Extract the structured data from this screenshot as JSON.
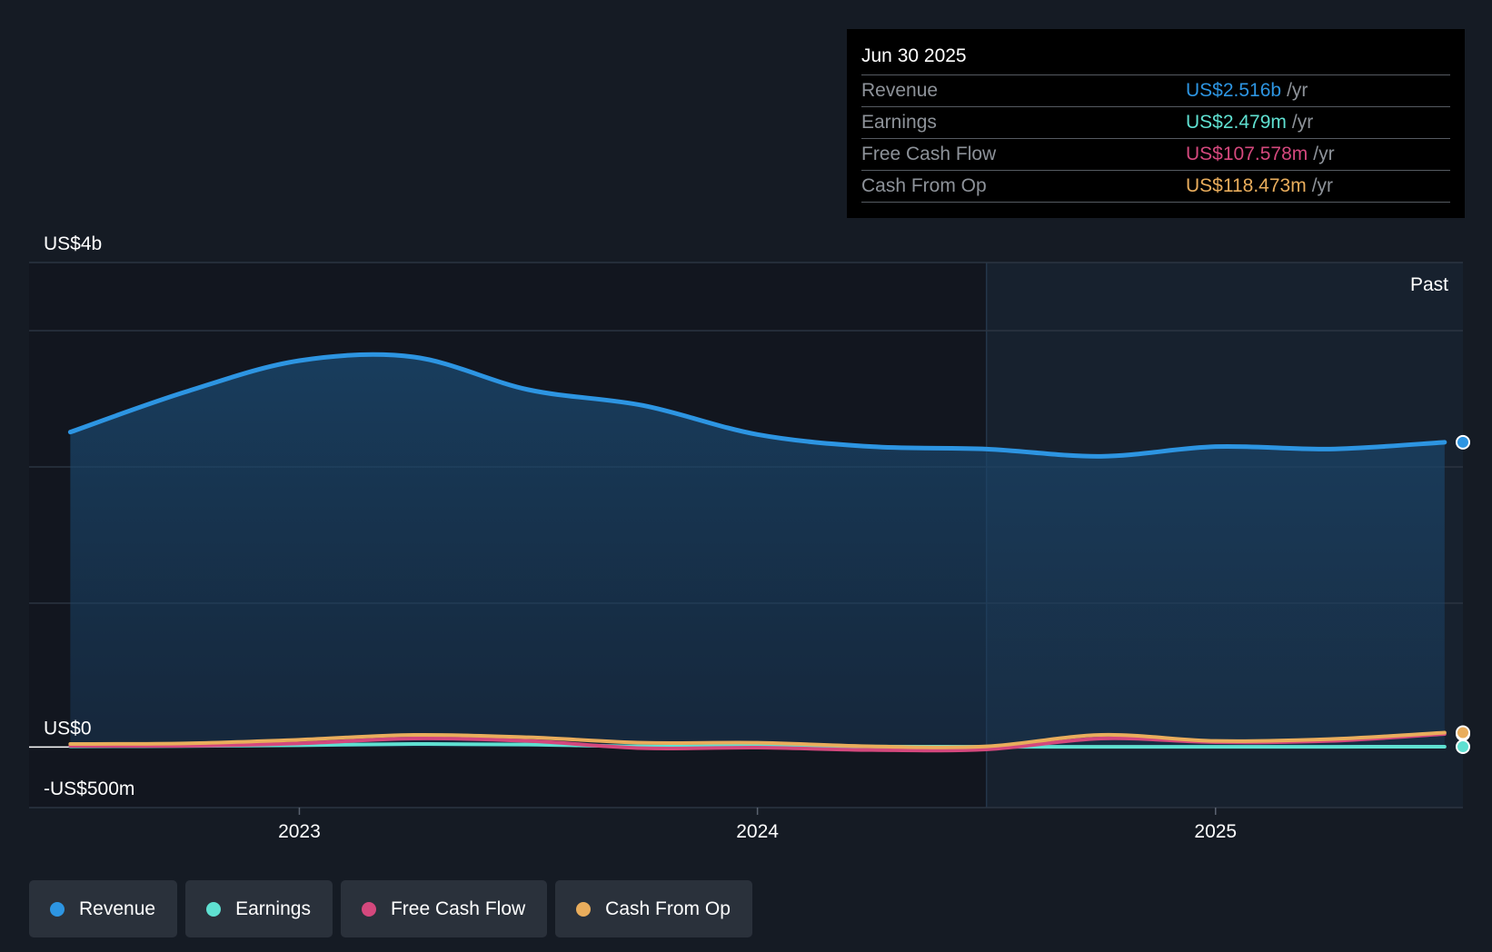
{
  "tooltip": {
    "date": "Jun 30 2025",
    "rows": [
      {
        "label": "Revenue",
        "value": "US$2.516b",
        "unit": "/yr",
        "color": "#2d95e2"
      },
      {
        "label": "Earnings",
        "value": "US$2.479m",
        "unit": "/yr",
        "color": "#5fe0d1"
      },
      {
        "label": "Free Cash Flow",
        "value": "US$107.578m",
        "unit": "/yr",
        "color": "#d4487d"
      },
      {
        "label": "Cash From Op",
        "value": "US$118.473m",
        "unit": "/yr",
        "color": "#e9ad5c"
      }
    ]
  },
  "legend": [
    {
      "label": "Revenue",
      "color": "#2d95e2"
    },
    {
      "label": "Earnings",
      "color": "#5fe0d1"
    },
    {
      "label": "Free Cash Flow",
      "color": "#d4487d"
    },
    {
      "label": "Cash From Op",
      "color": "#e9ad5c"
    }
  ],
  "chart_data": {
    "type": "area",
    "title": "",
    "ylim": [
      -500,
      4000
    ],
    "y_unit": "US$ millions",
    "y_tick_labels": [
      {
        "value": 4000,
        "label": "US$4b"
      },
      {
        "value": 0,
        "label": "US$0"
      },
      {
        "value": -500,
        "label": "-US$500m"
      }
    ],
    "x_ticks": [
      {
        "value": 2023.0,
        "label": "2023"
      },
      {
        "value": 2024.0,
        "label": "2024"
      },
      {
        "value": 2025.0,
        "label": "2025"
      }
    ],
    "xlim": [
      2022.41,
      2025.54
    ],
    "past_start": 2024.5,
    "past_label": "Past",
    "series": [
      {
        "name": "Revenue",
        "color": "#2d95e2",
        "fill": true,
        "x": [
          2022.5,
          2022.75,
          2023.0,
          2023.25,
          2023.5,
          2023.75,
          2024.0,
          2024.25,
          2024.5,
          2024.75,
          2025.0,
          2025.25,
          2025.5
        ],
        "values": [
          2600,
          2930,
          3190,
          3220,
          2950,
          2820,
          2580,
          2480,
          2460,
          2400,
          2480,
          2460,
          2516
        ]
      },
      {
        "name": "Earnings",
        "color": "#5fe0d1",
        "fill": false,
        "x": [
          2022.5,
          2022.75,
          2023.0,
          2023.25,
          2023.5,
          2023.75,
          2024.0,
          2024.25,
          2024.5,
          2024.75,
          2025.0,
          2025.25,
          2025.5
        ],
        "values": [
          5,
          8,
          15,
          25,
          20,
          5,
          8,
          3,
          2,
          2,
          2,
          2,
          2.479
        ]
      },
      {
        "name": "Free Cash Flow",
        "color": "#d4487d",
        "fill": false,
        "x": [
          2022.5,
          2022.75,
          2023.0,
          2023.25,
          2023.5,
          2023.75,
          2024.0,
          2024.25,
          2024.5,
          2024.75,
          2025.0,
          2025.25,
          2025.5
        ],
        "values": [
          10,
          10,
          30,
          70,
          50,
          -10,
          -5,
          -25,
          -20,
          70,
          40,
          50,
          107.578
        ]
      },
      {
        "name": "Cash From Op",
        "color": "#e9ad5c",
        "fill": false,
        "x": [
          2022.5,
          2022.75,
          2023.0,
          2023.25,
          2023.5,
          2023.75,
          2024.0,
          2024.25,
          2024.5,
          2024.75,
          2025.0,
          2025.25,
          2025.5
        ],
        "values": [
          25,
          30,
          60,
          100,
          80,
          35,
          35,
          5,
          5,
          100,
          50,
          65,
          118.473
        ]
      }
    ]
  }
}
